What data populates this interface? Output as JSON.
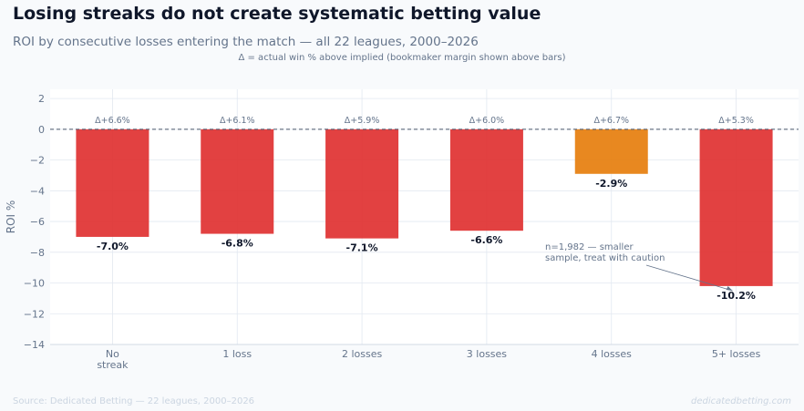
{
  "title": "Losing streaks do not create systematic betting value",
  "subtitle": "ROI by consecutive losses entering the match — all 22 leagues, 2000–2026",
  "note": "Δ = actual win % above implied (bookmaker margin shown above bars)",
  "footer": {
    "source": "Source: Dedicated Betting — 22 leagues, 2000–2026",
    "brand": "dedicatedbetting.com"
  },
  "colors": {
    "bar_default": "#e03131",
    "bar_highlight": "#e67e0d",
    "grid": "#e2e8f0",
    "zero_line": "#475569",
    "text_dark": "#0f172a",
    "text_muted": "#64748b"
  },
  "chart_data": {
    "type": "bar",
    "title": "Losing streaks do not create systematic betting value",
    "xlabel": "",
    "ylabel": "ROI %",
    "ylim": [
      -14,
      2.6
    ],
    "yticks": [
      2,
      0,
      -2,
      -4,
      -6,
      -8,
      -10,
      -12,
      -14
    ],
    "grid": true,
    "categories": [
      "No\nstreak",
      "1 loss",
      "2 losses",
      "3 losses",
      "4 losses",
      "5+ losses"
    ],
    "values": [
      -7.0,
      -6.8,
      -7.1,
      -6.6,
      -2.9,
      -10.2
    ],
    "value_labels": [
      "-7.0%",
      "-6.8%",
      "-7.1%",
      "-6.6%",
      "-2.9%",
      "-10.2%"
    ],
    "delta_labels": [
      "Δ+6.6%",
      "Δ+6.1%",
      "Δ+5.9%",
      "Δ+6.0%",
      "Δ+6.7%",
      "Δ+5.3%"
    ],
    "highlight_index": 4,
    "annotation": {
      "lines": [
        "n=1,982 — smaller",
        "sample, treat with caution"
      ],
      "target_index": 5,
      "target_value": -10.5
    }
  }
}
